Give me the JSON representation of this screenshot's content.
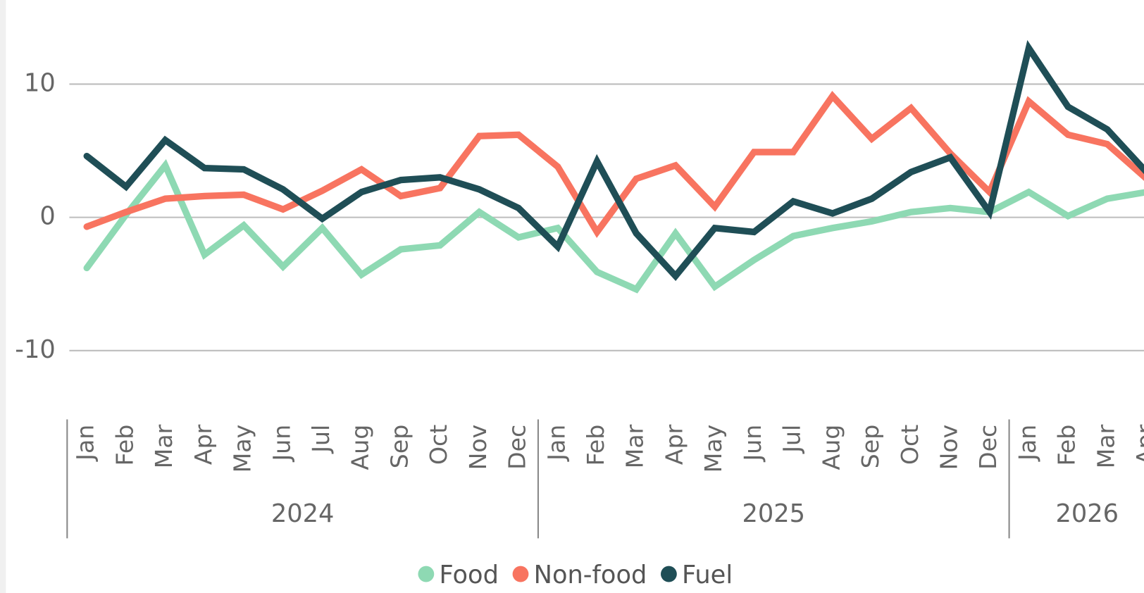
{
  "chart_data": {
    "type": "line",
    "categories": [
      "Jan",
      "Feb",
      "Mar",
      "Apr",
      "May",
      "Jun",
      "Jul",
      "Aug",
      "Sep",
      "Oct",
      "Nov",
      "Dec",
      "Jan",
      "Feb",
      "Mar",
      "Apr",
      "May",
      "Jun",
      "Jul",
      "Aug",
      "Sep",
      "Oct",
      "Nov",
      "Dec",
      "Jan",
      "Feb",
      "Mar",
      "Apr"
    ],
    "x_groups": [
      "2024",
      "2025",
      "2026"
    ],
    "series": [
      {
        "name": "Food",
        "color": "#8ed9b3",
        "values": [
          -3.8,
          0.2,
          3.9,
          -2.8,
          -0.6,
          -3.7,
          -0.8,
          -4.3,
          -2.4,
          -2.1,
          0.4,
          -1.5,
          -0.8,
          -4.1,
          -5.4,
          -1.2,
          -5.2,
          -3.2,
          -1.4,
          -0.8,
          -0.3,
          0.4,
          0.7,
          0.4,
          1.9,
          0.1,
          1.4,
          1.9
        ]
      },
      {
        "name": "Non-food",
        "color": "#f87460",
        "values": [
          -0.7,
          0.4,
          1.4,
          1.6,
          1.7,
          0.6,
          2.0,
          3.6,
          1.6,
          2.2,
          6.1,
          6.2,
          3.8,
          -1.1,
          2.9,
          3.9,
          0.8,
          4.9,
          4.9,
          9.1,
          5.9,
          8.2,
          4.8,
          1.9,
          8.7,
          6.2,
          5.5,
          2.9
        ]
      },
      {
        "name": "Fuel",
        "color": "#1f4e56",
        "values": [
          4.6,
          2.3,
          5.8,
          3.7,
          3.6,
          2.1,
          -0.1,
          1.9,
          2.8,
          3.0,
          2.1,
          0.7,
          -2.2,
          4.2,
          -1.2,
          -4.4,
          -0.8,
          -1.1,
          1.2,
          0.3,
          1.4,
          3.4,
          4.5,
          0.4,
          12.7,
          8.3,
          6.6,
          3.4
        ]
      }
    ],
    "ylim": [
      -15,
      15
    ],
    "yticks": [
      -10,
      0,
      10
    ],
    "grid": true,
    "legend": "bottom"
  }
}
